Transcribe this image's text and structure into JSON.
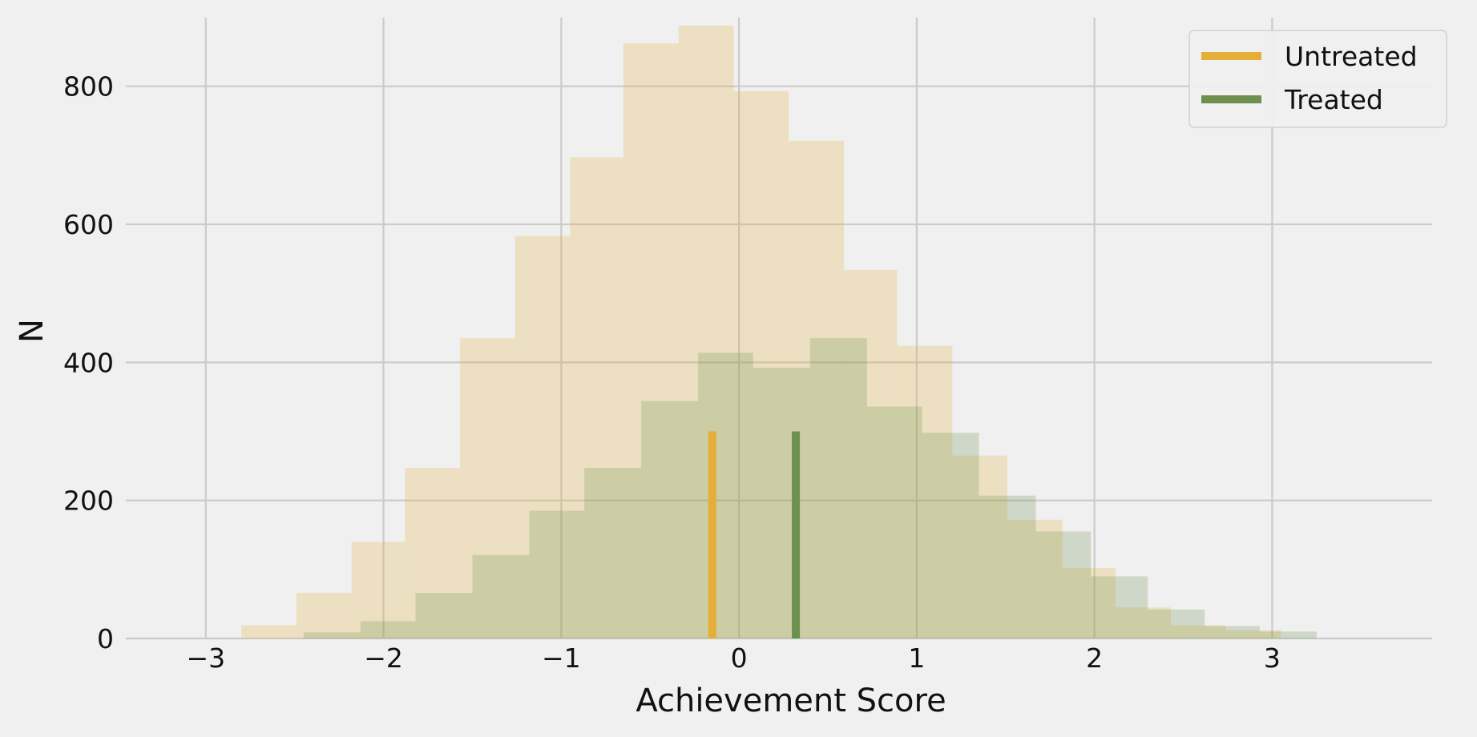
{
  "chart_data": {
    "type": "bar",
    "subtype": "overlaid histogram",
    "title": "",
    "xlabel": "Achievement Score",
    "ylabel": "N",
    "xlim": [
      -3.45,
      3.9
    ],
    "ylim": [
      0,
      925
    ],
    "x_ticks": [
      {
        "value": -3,
        "label": "−3"
      },
      {
        "value": -2,
        "label": "−2"
      },
      {
        "value": -1,
        "label": "−1"
      },
      {
        "value": 0,
        "label": "0"
      },
      {
        "value": 1,
        "label": "1"
      },
      {
        "value": 2,
        "label": "2"
      },
      {
        "value": 3,
        "label": "3"
      }
    ],
    "y_ticks": [
      {
        "value": 0,
        "label": "0"
      },
      {
        "value": 200,
        "label": "200"
      },
      {
        "value": 400,
        "label": "400"
      },
      {
        "value": 600,
        "label": "600"
      },
      {
        "value": 800,
        "label": "800"
      }
    ],
    "grid": true,
    "legend_position": "top-right",
    "series": [
      {
        "name": "Untreated",
        "color": "#e5ae38",
        "fill_color": "#ecdcb6",
        "bin_edges": [
          -2.8,
          -2.49,
          -2.18,
          -1.88,
          -1.57,
          -1.26,
          -0.95,
          -0.65,
          -0.34,
          -0.03,
          0.28,
          0.59,
          0.89,
          1.2,
          1.51,
          1.82,
          2.12,
          2.43,
          2.74,
          3.05
        ],
        "counts": [
          19,
          66,
          140,
          247,
          435,
          583,
          697,
          862,
          888,
          793,
          721,
          534,
          424,
          265,
          172,
          102,
          45,
          19,
          12
        ],
        "mean": -0.15
      },
      {
        "name": "Treated",
        "color": "#6d904f",
        "fill_color": "#c7ceb0",
        "bin_edges": [
          -2.45,
          -2.13,
          -1.82,
          -1.5,
          -1.18,
          -0.87,
          -0.55,
          -0.23,
          0.08,
          0.4,
          0.72,
          1.03,
          1.35,
          1.67,
          1.98,
          2.3,
          2.62,
          2.93,
          3.25
        ],
        "counts": [
          9,
          25,
          66,
          121,
          185,
          247,
          344,
          414,
          392,
          435,
          336,
          298,
          207,
          155,
          90,
          42,
          18,
          10
        ],
        "mean": 0.32
      }
    ],
    "mean_line_height": 300
  }
}
